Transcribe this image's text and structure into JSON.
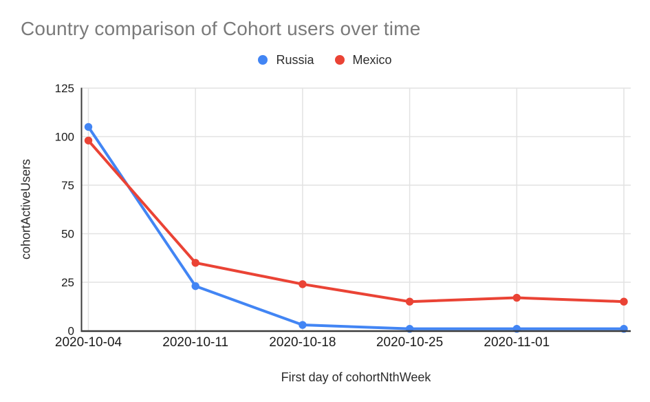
{
  "chart_data": {
    "type": "line",
    "title": "Country comparison of Cohort users over time",
    "xlabel": "First day of cohortNthWeek",
    "ylabel": "cohortActiveUsers",
    "categories": [
      "2020-10-04",
      "2020-10-11",
      "2020-10-18",
      "2020-10-25",
      "2020-11-01",
      ""
    ],
    "series": [
      {
        "name": "Russia",
        "color": "#4285f4",
        "values": [
          105,
          23,
          3,
          1,
          1,
          1
        ]
      },
      {
        "name": "Mexico",
        "color": "#ea4335",
        "values": [
          98,
          35,
          24,
          15,
          17,
          15
        ]
      }
    ],
    "ylim": [
      0,
      125
    ],
    "yticks": [
      0,
      25,
      50,
      75,
      100,
      125
    ],
    "grid": true,
    "legend_position": "top",
    "title_color": "#7a7a7a",
    "markers": true
  }
}
